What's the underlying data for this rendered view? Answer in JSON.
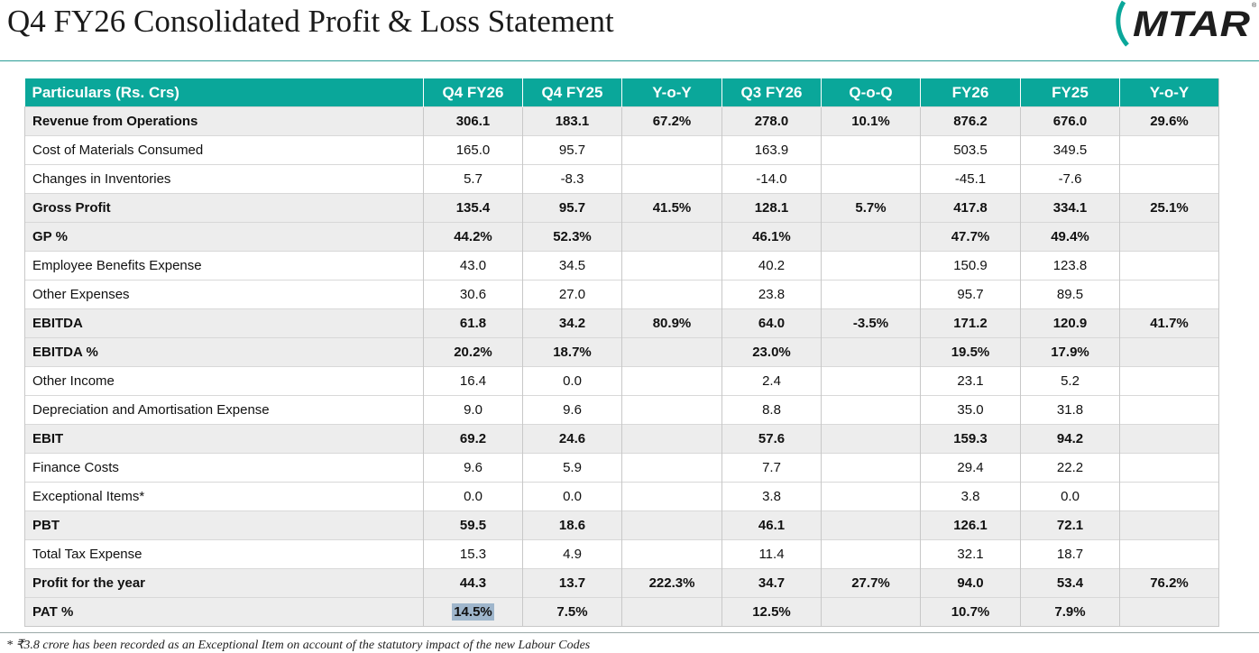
{
  "title": "Q4 FY26 Consolidated Profit & Loss Statement",
  "logo": {
    "text": "MTAR",
    "registered": "®"
  },
  "colors": {
    "header_bg": "#0aa79a",
    "row_shade": "#ededed",
    "rule": "#2a9d96"
  },
  "table": {
    "headers": [
      "Particulars (Rs. Crs)",
      "Q4 FY26",
      "Q4 FY25",
      "Y-o-Y",
      "Q3 FY26",
      "Q-o-Q",
      "FY26",
      "FY25",
      "Y-o-Y"
    ],
    "rows": [
      {
        "bold": true,
        "shade": true,
        "cells": [
          "Revenue from Operations",
          "306.1",
          "183.1",
          "67.2%",
          "278.0",
          "10.1%",
          "876.2",
          "676.0",
          "29.6%"
        ]
      },
      {
        "bold": false,
        "shade": false,
        "cells": [
          "Cost of Materials Consumed",
          "165.0",
          "95.7",
          "",
          "163.9",
          "",
          "503.5",
          "349.5",
          ""
        ]
      },
      {
        "bold": false,
        "shade": false,
        "cells": [
          "Changes in Inventories",
          "5.7",
          "-8.3",
          "",
          "-14.0",
          "",
          "-45.1",
          "-7.6",
          ""
        ]
      },
      {
        "bold": true,
        "shade": true,
        "cells": [
          "Gross Profit",
          "135.4",
          "95.7",
          "41.5%",
          "128.1",
          "5.7%",
          "417.8",
          "334.1",
          "25.1%"
        ]
      },
      {
        "bold": true,
        "shade": true,
        "cells": [
          "GP %",
          "44.2%",
          "52.3%",
          "",
          "46.1%",
          "",
          "47.7%",
          "49.4%",
          ""
        ]
      },
      {
        "bold": false,
        "shade": false,
        "cells": [
          "Employee Benefits Expense",
          "43.0",
          "34.5",
          "",
          "40.2",
          "",
          "150.9",
          "123.8",
          ""
        ]
      },
      {
        "bold": false,
        "shade": false,
        "cells": [
          "Other Expenses",
          "30.6",
          "27.0",
          "",
          "23.8",
          "",
          "95.7",
          "89.5",
          ""
        ]
      },
      {
        "bold": true,
        "shade": true,
        "cells": [
          "EBITDA",
          "61.8",
          "34.2",
          "80.9%",
          "64.0",
          "-3.5%",
          "171.2",
          "120.9",
          "41.7%"
        ]
      },
      {
        "bold": true,
        "shade": true,
        "cells": [
          "EBITDA %",
          "20.2%",
          "18.7%",
          "",
          "23.0%",
          "",
          "19.5%",
          "17.9%",
          ""
        ]
      },
      {
        "bold": false,
        "shade": false,
        "cells": [
          "Other Income",
          "16.4",
          "0.0",
          "",
          "2.4",
          "",
          "23.1",
          "5.2",
          ""
        ]
      },
      {
        "bold": false,
        "shade": false,
        "cells": [
          "Depreciation and Amortisation Expense",
          "9.0",
          "9.6",
          "",
          "8.8",
          "",
          "35.0",
          "31.8",
          ""
        ]
      },
      {
        "bold": true,
        "shade": true,
        "cells": [
          "EBIT",
          "69.2",
          "24.6",
          "",
          "57.6",
          "",
          "159.3",
          "94.2",
          ""
        ]
      },
      {
        "bold": false,
        "shade": false,
        "cells": [
          "Finance Costs",
          "9.6",
          "5.9",
          "",
          "7.7",
          "",
          "29.4",
          "22.2",
          ""
        ]
      },
      {
        "bold": false,
        "shade": false,
        "cells": [
          "Exceptional Items*",
          "0.0",
          "0.0",
          "",
          "3.8",
          "",
          "3.8",
          "0.0",
          ""
        ]
      },
      {
        "bold": true,
        "shade": true,
        "cells": [
          "PBT",
          "59.5",
          "18.6",
          "",
          "46.1",
          "",
          "126.1",
          "72.1",
          ""
        ]
      },
      {
        "bold": false,
        "shade": false,
        "cells": [
          "Total Tax Expense",
          "15.3",
          "4.9",
          "",
          "11.4",
          "",
          "32.1",
          "18.7",
          ""
        ]
      },
      {
        "bold": true,
        "shade": true,
        "cells": [
          "Profit for the year",
          "44.3",
          "13.7",
          "222.3%",
          "34.7",
          "27.7%",
          "94.0",
          "53.4",
          "76.2%"
        ]
      },
      {
        "bold": true,
        "shade": true,
        "cells": [
          "PAT %",
          "14.5%",
          "7.5%",
          "",
          "12.5%",
          "",
          "10.7%",
          "7.9%",
          ""
        ]
      }
    ],
    "highlighted_cell": {
      "row": 17,
      "col": 1
    }
  },
  "footnote": "* ₹3.8 crore has been recorded as an Exceptional Item on account of the statutory impact of the new Labour Codes"
}
